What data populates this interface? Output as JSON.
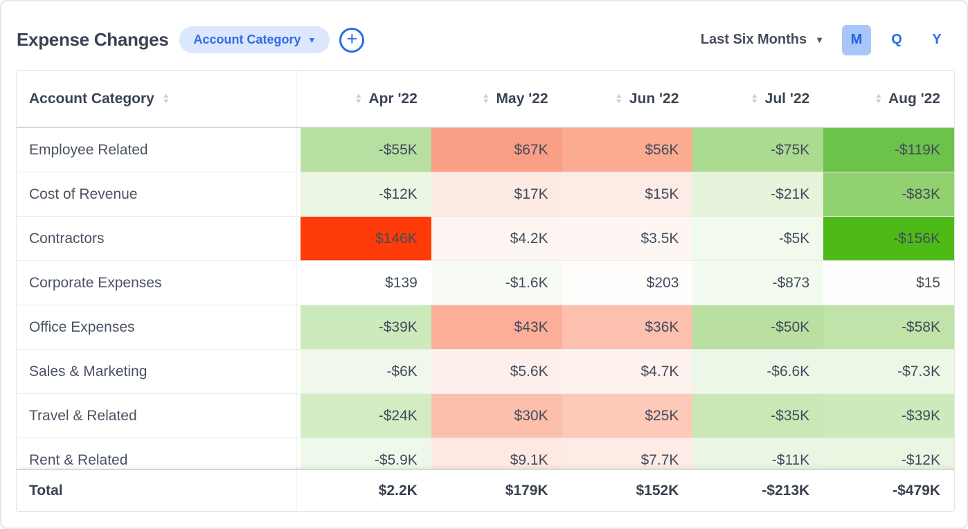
{
  "header": {
    "title": "Expense Changes",
    "dimension_pill": "Account Category",
    "chevron": "▼",
    "add_icon": "+",
    "period_label": "Last Six Months",
    "granularity": [
      {
        "label": "M",
        "active": true
      },
      {
        "label": "Q",
        "active": false
      },
      {
        "label": "Y",
        "active": false
      }
    ]
  },
  "colors": {
    "accent_blue": "#2b6ce8",
    "pill_bg": "#dbe7fd",
    "active_toggle_bg": "#a9c6f8",
    "strong_increase_red": "#fe3b09",
    "strong_decrease_green": "#4eba18"
  },
  "table": {
    "first_column_header": "Account Category",
    "sort_up": "▲",
    "sort_down": "▼",
    "column_headers": [
      "Apr '22",
      "May '22",
      "Jun '22",
      "Jul '22",
      "Aug '22"
    ],
    "rows": [
      {
        "label": "Employee Related",
        "values": [
          "-$55K",
          "$67K",
          "$56K",
          "-$75K",
          "-$119K"
        ],
        "bg": [
          "#b6dfa1",
          "#fb9e86",
          "#fcab93",
          "#aadb91",
          "#6cc24b"
        ]
      },
      {
        "label": "Cost of Revenue",
        "values": [
          "-$12K",
          "$17K",
          "$15K",
          "-$21K",
          "-$83K"
        ],
        "bg": [
          "#ebf7e4",
          "#fdeae3",
          "#fdece6",
          "#e5f4db",
          "#92d16f"
        ]
      },
      {
        "label": "Contractors",
        "values": [
          "$146K",
          "$4.2K",
          "$3.5K",
          "-$5K",
          "-$156K"
        ],
        "bg": [
          "#fe3b09",
          "#fdf5f2",
          "#fdf6f3",
          "#f2faee",
          "#4eba18"
        ]
      },
      {
        "label": "Corporate Expenses",
        "values": [
          "$139",
          "-$1.6K",
          "$203",
          "-$873",
          "$15"
        ],
        "bg": [
          "#ffffff",
          "#f7fbf4",
          "#fefdfc",
          "#f3faef",
          "#fefefd"
        ]
      },
      {
        "label": "Office Expenses",
        "values": [
          "-$39K",
          "$43K",
          "$36K",
          "-$50K",
          "-$58K"
        ],
        "bg": [
          "#cdeabc",
          "#fcae98",
          "#fdbfae",
          "#b9e0a0",
          "#bfe3a8"
        ]
      },
      {
        "label": "Sales & Marketing",
        "values": [
          "-$6K",
          "$5.6K",
          "$4.7K",
          "-$6.6K",
          "-$7.3K"
        ],
        "bg": [
          "#eff8ea",
          "#fdf0ec",
          "#fdf2ee",
          "#edf7e7",
          "#ecf7e5"
        ]
      },
      {
        "label": "Travel & Related",
        "values": [
          "-$24K",
          "$30K",
          "$25K",
          "-$35K",
          "-$39K"
        ],
        "bg": [
          "#d3ecc4",
          "#fcbfac",
          "#fdc9b9",
          "#c9e8b6",
          "#cdeabc"
        ]
      },
      {
        "label": "Rent & Related",
        "values": [
          "-$5.9K",
          "$9.1K",
          "$7.7K",
          "-$11K",
          "-$12K"
        ],
        "bg": [
          "#eff9eb",
          "#fde9e2",
          "#fdebe6",
          "#eaf6e3",
          "#e9f6e2"
        ]
      }
    ],
    "total": {
      "label": "Total",
      "values": [
        "$2.2K",
        "$179K",
        "$152K",
        "-$213K",
        "-$479K"
      ]
    }
  }
}
